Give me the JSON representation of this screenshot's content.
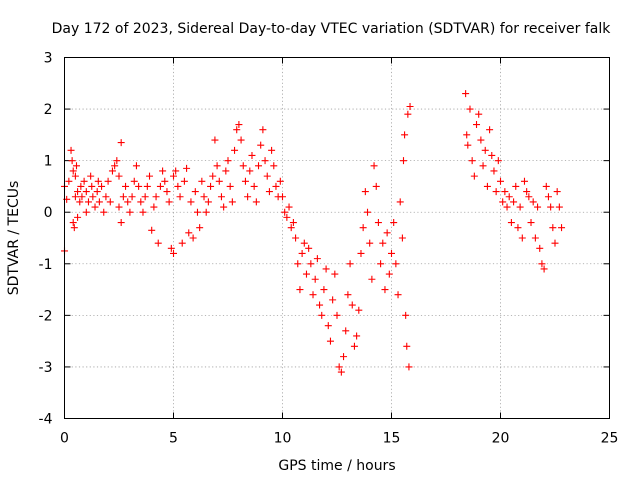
{
  "chart_data": {
    "type": "scatter",
    "title": "Day 172 of 2023, Sidereal Day-to-day VTEC variation (SDTVAR) for receiver falk",
    "xlabel": "GPS time / hours",
    "ylabel": "SDTVAR / TECUs",
    "xlim": [
      0,
      25
    ],
    "ylim": [
      -4,
      3
    ],
    "xticks": [
      0,
      5,
      10,
      15,
      20,
      25
    ],
    "yticks": [
      -4,
      -3,
      -2,
      -1,
      0,
      1,
      2,
      3
    ],
    "grid": true,
    "marker": "+",
    "color": "#ff0000",
    "series": [
      {
        "name": "SDTVAR",
        "points": [
          [
            0.0,
            0.5
          ],
          [
            0.0,
            -0.75
          ],
          [
            0.1,
            0.25
          ],
          [
            0.2,
            0.6
          ],
          [
            0.3,
            1.2
          ],
          [
            0.35,
            1.0
          ],
          [
            0.4,
            0.8
          ],
          [
            0.4,
            -0.2
          ],
          [
            0.45,
            -0.3
          ],
          [
            0.5,
            0.3
          ],
          [
            0.5,
            0.7
          ],
          [
            0.55,
            0.9
          ],
          [
            0.6,
            0.4
          ],
          [
            0.6,
            -0.1
          ],
          [
            0.7,
            0.2
          ],
          [
            0.75,
            0.5
          ],
          [
            0.8,
            0.3
          ],
          [
            0.9,
            0.6
          ],
          [
            1.0,
            0.4
          ],
          [
            1.0,
            0.0
          ],
          [
            1.1,
            0.2
          ],
          [
            1.2,
            0.7
          ],
          [
            1.25,
            0.5
          ],
          [
            1.3,
            0.3
          ],
          [
            1.4,
            0.1
          ],
          [
            1.5,
            0.4
          ],
          [
            1.55,
            0.6
          ],
          [
            1.6,
            0.2
          ],
          [
            1.7,
            0.5
          ],
          [
            1.8,
            0.0
          ],
          [
            1.9,
            0.3
          ],
          [
            2.0,
            0.6
          ],
          [
            2.1,
            0.2
          ],
          [
            2.2,
            0.8
          ],
          [
            2.3,
            0.9
          ],
          [
            2.4,
            1.0
          ],
          [
            2.5,
            0.7
          ],
          [
            2.5,
            0.1
          ],
          [
            2.6,
            -0.2
          ],
          [
            2.6,
            1.35
          ],
          [
            2.7,
            0.3
          ],
          [
            2.8,
            0.5
          ],
          [
            2.9,
            0.2
          ],
          [
            3.0,
            0.0
          ],
          [
            3.1,
            0.3
          ],
          [
            3.2,
            0.6
          ],
          [
            3.3,
            0.9
          ],
          [
            3.4,
            0.5
          ],
          [
            3.5,
            0.2
          ],
          [
            3.6,
            0.0
          ],
          [
            3.7,
            0.3
          ],
          [
            3.8,
            0.5
          ],
          [
            3.9,
            0.7
          ],
          [
            4.0,
            -0.35
          ],
          [
            4.1,
            0.1
          ],
          [
            4.2,
            0.3
          ],
          [
            4.3,
            -0.6
          ],
          [
            4.4,
            0.5
          ],
          [
            4.5,
            0.8
          ],
          [
            4.6,
            0.6
          ],
          [
            4.7,
            0.4
          ],
          [
            4.8,
            0.2
          ],
          [
            4.9,
            -0.7
          ],
          [
            5.0,
            0.7
          ],
          [
            5.0,
            -0.8
          ],
          [
            5.1,
            0.8
          ],
          [
            5.2,
            0.5
          ],
          [
            5.3,
            0.3
          ],
          [
            5.4,
            -0.6
          ],
          [
            5.5,
            0.6
          ],
          [
            5.6,
            0.85
          ],
          [
            5.7,
            -0.4
          ],
          [
            5.8,
            0.2
          ],
          [
            5.9,
            -0.5
          ],
          [
            6.0,
            0.4
          ],
          [
            6.1,
            0.0
          ],
          [
            6.2,
            -0.3
          ],
          [
            6.3,
            0.6
          ],
          [
            6.4,
            0.3
          ],
          [
            6.5,
            0.0
          ],
          [
            6.6,
            0.2
          ],
          [
            6.7,
            0.5
          ],
          [
            6.8,
            0.7
          ],
          [
            6.9,
            1.4
          ],
          [
            7.0,
            0.9
          ],
          [
            7.1,
            0.6
          ],
          [
            7.2,
            0.3
          ],
          [
            7.3,
            0.1
          ],
          [
            7.4,
            0.8
          ],
          [
            7.5,
            1.0
          ],
          [
            7.6,
            0.5
          ],
          [
            7.7,
            0.2
          ],
          [
            7.8,
            1.2
          ],
          [
            7.9,
            1.6
          ],
          [
            8.0,
            1.7
          ],
          [
            8.1,
            1.4
          ],
          [
            8.2,
            0.9
          ],
          [
            8.3,
            0.6
          ],
          [
            8.4,
            0.3
          ],
          [
            8.5,
            0.8
          ],
          [
            8.6,
            1.1
          ],
          [
            8.7,
            0.5
          ],
          [
            8.8,
            0.2
          ],
          [
            8.9,
            0.9
          ],
          [
            9.0,
            1.3
          ],
          [
            9.1,
            1.6
          ],
          [
            9.2,
            1.0
          ],
          [
            9.3,
            0.7
          ],
          [
            9.4,
            0.4
          ],
          [
            9.5,
            1.2
          ],
          [
            9.6,
            0.9
          ],
          [
            9.7,
            0.5
          ],
          [
            9.8,
            0.3
          ],
          [
            9.9,
            0.6
          ],
          [
            10.0,
            0.3
          ],
          [
            10.1,
            0.0
          ],
          [
            10.2,
            -0.1
          ],
          [
            10.3,
            0.1
          ],
          [
            10.4,
            -0.3
          ],
          [
            10.5,
            -0.2
          ],
          [
            10.6,
            -0.5
          ],
          [
            10.7,
            -1.0
          ],
          [
            10.8,
            -1.5
          ],
          [
            10.9,
            -0.8
          ],
          [
            11.0,
            -0.6
          ],
          [
            11.1,
            -1.2
          ],
          [
            11.2,
            -0.7
          ],
          [
            11.3,
            -1.0
          ],
          [
            11.4,
            -1.6
          ],
          [
            11.5,
            -1.3
          ],
          [
            11.6,
            -0.9
          ],
          [
            11.7,
            -1.8
          ],
          [
            11.8,
            -2.0
          ],
          [
            11.9,
            -1.5
          ],
          [
            12.0,
            -1.1
          ],
          [
            12.1,
            -2.2
          ],
          [
            12.2,
            -2.5
          ],
          [
            12.3,
            -1.7
          ],
          [
            12.4,
            -1.2
          ],
          [
            12.5,
            -2.0
          ],
          [
            12.6,
            -3.0
          ],
          [
            12.7,
            -3.1
          ],
          [
            12.8,
            -2.8
          ],
          [
            12.9,
            -2.3
          ],
          [
            13.0,
            -1.6
          ],
          [
            13.1,
            -1.0
          ],
          [
            13.2,
            -1.8
          ],
          [
            13.3,
            -2.6
          ],
          [
            13.4,
            -2.4
          ],
          [
            13.5,
            -1.9
          ],
          [
            13.6,
            -0.8
          ],
          [
            13.7,
            -0.3
          ],
          [
            13.8,
            0.4
          ],
          [
            13.9,
            0.0
          ],
          [
            14.0,
            -0.6
          ],
          [
            14.1,
            -1.3
          ],
          [
            14.2,
            0.9
          ],
          [
            14.3,
            0.5
          ],
          [
            14.4,
            -0.2
          ],
          [
            14.5,
            -1.0
          ],
          [
            14.6,
            -0.6
          ],
          [
            14.7,
            -1.5
          ],
          [
            14.8,
            -0.4
          ],
          [
            14.9,
            -1.2
          ],
          [
            15.0,
            -0.8
          ],
          [
            15.1,
            -0.2
          ],
          [
            15.2,
            -1.0
          ],
          [
            15.3,
            -1.6
          ],
          [
            15.4,
            0.2
          ],
          [
            15.5,
            -0.5
          ],
          [
            15.55,
            1.0
          ],
          [
            15.6,
            1.5
          ],
          [
            15.65,
            -2.0
          ],
          [
            15.7,
            -2.6
          ],
          [
            15.75,
            1.9
          ],
          [
            15.8,
            -3.0
          ],
          [
            15.85,
            2.05
          ],
          [
            18.4,
            2.3
          ],
          [
            18.45,
            1.5
          ],
          [
            18.5,
            1.3
          ],
          [
            18.6,
            2.0
          ],
          [
            18.7,
            1.0
          ],
          [
            18.8,
            0.7
          ],
          [
            18.9,
            1.7
          ],
          [
            19.0,
            1.9
          ],
          [
            19.1,
            1.4
          ],
          [
            19.2,
            0.9
          ],
          [
            19.3,
            1.2
          ],
          [
            19.4,
            0.5
          ],
          [
            19.5,
            1.6
          ],
          [
            19.6,
            1.1
          ],
          [
            19.7,
            0.8
          ],
          [
            19.8,
            0.4
          ],
          [
            19.9,
            1.0
          ],
          [
            20.0,
            0.6
          ],
          [
            20.1,
            0.2
          ],
          [
            20.2,
            0.4
          ],
          [
            20.3,
            0.1
          ],
          [
            20.4,
            0.3
          ],
          [
            20.5,
            -0.2
          ],
          [
            20.6,
            0.2
          ],
          [
            20.7,
            0.5
          ],
          [
            20.8,
            -0.3
          ],
          [
            20.9,
            0.1
          ],
          [
            21.0,
            -0.5
          ],
          [
            21.1,
            0.6
          ],
          [
            21.2,
            0.4
          ],
          [
            21.3,
            0.3
          ],
          [
            21.4,
            -0.2
          ],
          [
            21.5,
            0.2
          ],
          [
            21.6,
            -0.5
          ],
          [
            21.7,
            0.1
          ],
          [
            21.8,
            -0.7
          ],
          [
            21.9,
            -1.0
          ],
          [
            22.0,
            -1.1
          ],
          [
            22.1,
            0.5
          ],
          [
            22.2,
            0.3
          ],
          [
            22.3,
            0.1
          ],
          [
            22.4,
            -0.3
          ],
          [
            22.5,
            -0.6
          ],
          [
            22.6,
            0.4
          ],
          [
            22.7,
            0.1
          ],
          [
            22.8,
            -0.3
          ]
        ]
      }
    ]
  }
}
